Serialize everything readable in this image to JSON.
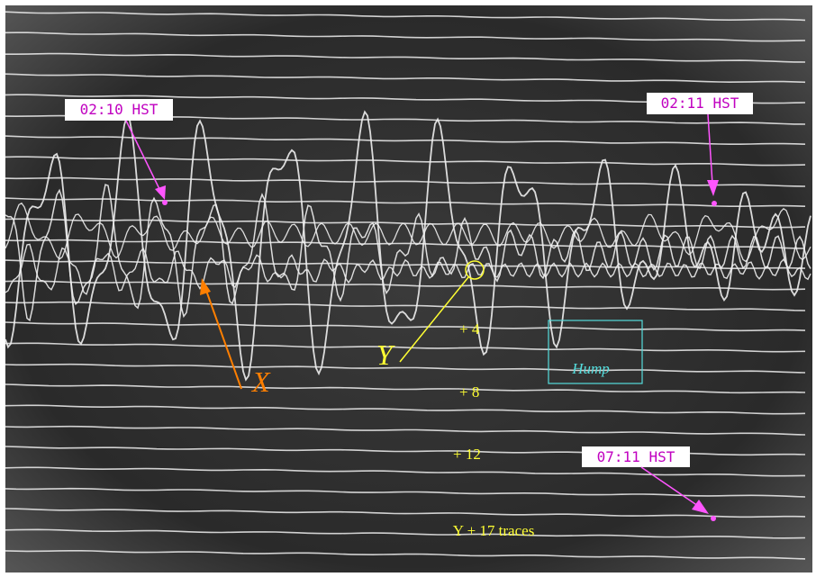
{
  "callouts": [
    {
      "label": "02:10 HST"
    },
    {
      "label": "02:11 HST"
    },
    {
      "label": "07:11 HST"
    }
  ],
  "markers": {
    "x": "X",
    "y": "Y"
  },
  "offsets": [
    "+ 4",
    "+ 8",
    "+ 12"
  ],
  "hump": "Hump",
  "footer": "Y + 17 traces"
}
